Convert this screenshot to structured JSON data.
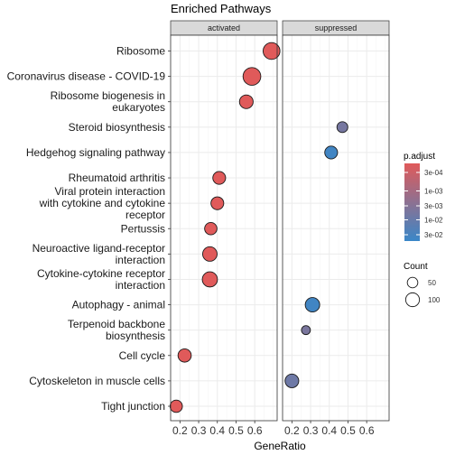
{
  "chart_data": {
    "type": "scatter",
    "title": "Enriched Pathways",
    "xlabel": "GeneRatio",
    "ylabel": "",
    "xlim": [
      0.15,
      0.72
    ],
    "xticks": [
      0.2,
      0.3,
      0.4,
      0.5,
      0.6
    ],
    "xtick_labels": [
      "0.2",
      "0.3",
      "0.4",
      "0.5",
      "0.6"
    ],
    "panels": [
      "activated",
      "suppressed"
    ],
    "categories": [
      {
        "label": [
          "Ribosome"
        ]
      },
      {
        "label": [
          "Coronavirus disease - COVID-19"
        ]
      },
      {
        "label": [
          "Ribosome biogenesis in",
          "eukaryotes"
        ]
      },
      {
        "label": [
          "Steroid biosynthesis"
        ]
      },
      {
        "label": [
          "Hedgehog signaling pathway"
        ]
      },
      {
        "label": [
          "Rheumatoid arthritis"
        ]
      },
      {
        "label": [
          "Viral protein interaction",
          "with cytokine and cytokine",
          "receptor"
        ]
      },
      {
        "label": [
          "Pertussis"
        ]
      },
      {
        "label": [
          "Neuroactive ligand-receptor",
          "interaction"
        ]
      },
      {
        "label": [
          "Cytokine-cytokine receptor",
          "interaction"
        ]
      },
      {
        "label": [
          "Autophagy - animal"
        ]
      },
      {
        "label": [
          "Terpenoid backbone",
          "biosynthesis"
        ]
      },
      {
        "label": [
          "Cell cycle"
        ]
      },
      {
        "label": [
          "Cytoskeleton in muscle cells"
        ]
      },
      {
        "label": [
          "Tight junction"
        ]
      }
    ],
    "points": [
      {
        "panel": "activated",
        "category": 0,
        "x": 0.69,
        "count": 110,
        "p_adjust": 5e-05
      },
      {
        "panel": "activated",
        "category": 1,
        "x": 0.585,
        "count": 125,
        "p_adjust": 5e-05
      },
      {
        "panel": "activated",
        "category": 2,
        "x": 0.555,
        "count": 65,
        "p_adjust": 5e-05
      },
      {
        "panel": "suppressed",
        "category": 3,
        "x": 0.47,
        "count": 35,
        "p_adjust": 0.0035
      },
      {
        "panel": "suppressed",
        "category": 4,
        "x": 0.41,
        "count": 55,
        "p_adjust": 0.03
      },
      {
        "panel": "activated",
        "category": 5,
        "x": 0.41,
        "count": 55,
        "p_adjust": 5e-05
      },
      {
        "panel": "activated",
        "category": 6,
        "x": 0.4,
        "count": 55,
        "p_adjust": 5e-05
      },
      {
        "panel": "activated",
        "category": 7,
        "x": 0.365,
        "count": 50,
        "p_adjust": 5e-05
      },
      {
        "panel": "activated",
        "category": 8,
        "x": 0.36,
        "count": 75,
        "p_adjust": 5e-05
      },
      {
        "panel": "activated",
        "category": 9,
        "x": 0.36,
        "count": 85,
        "p_adjust": 5e-05
      },
      {
        "panel": "suppressed",
        "category": 10,
        "x": 0.31,
        "count": 75,
        "p_adjust": 0.03
      },
      {
        "panel": "suppressed",
        "category": 11,
        "x": 0.275,
        "count": 20,
        "p_adjust": 0.003
      },
      {
        "panel": "activated",
        "category": 12,
        "x": 0.225,
        "count": 60,
        "p_adjust": 5e-05
      },
      {
        "panel": "suppressed",
        "category": 13,
        "x": 0.2,
        "count": 65,
        "p_adjust": 0.005
      },
      {
        "panel": "activated",
        "category": 14,
        "x": 0.18,
        "count": 50,
        "p_adjust": 5e-05
      }
    ],
    "legend": {
      "color_title": "p.adjust",
      "color_labels": [
        "3e-04",
        "1e-03",
        "3e-03",
        "1e-02",
        "3e-02"
      ],
      "color_low": "#e05a5a",
      "color_high": "#3a87c8",
      "size_title": "Count",
      "size_labels": [
        "50",
        "100"
      ],
      "size_values": [
        50,
        100
      ],
      "placement": "right"
    },
    "grid": true,
    "colors": {
      "strip_fill": "#d9d9d9",
      "panel_border": "#333333",
      "grid_major": "#ebebeb",
      "grid_minor": "#f5f5f5"
    }
  }
}
